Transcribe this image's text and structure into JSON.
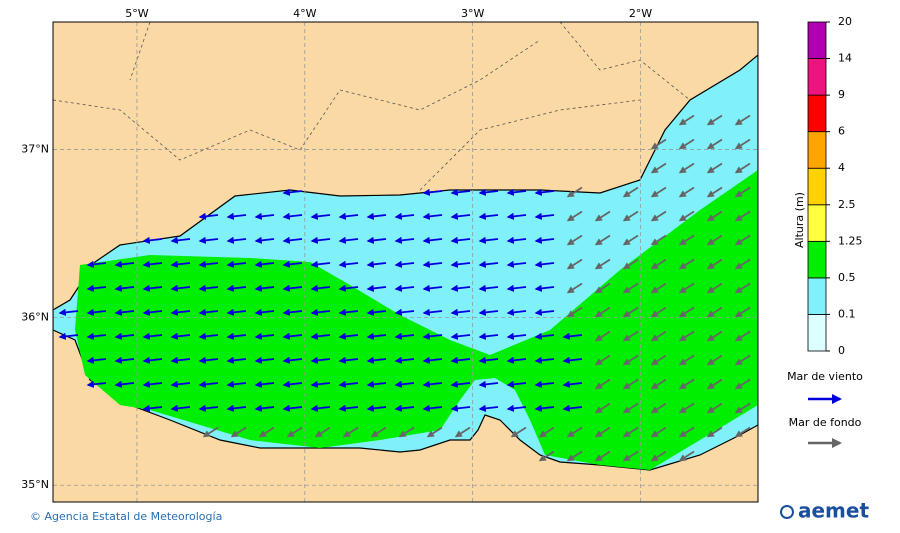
{
  "map": {
    "lon_range": [
      -5.5,
      -1.3
    ],
    "lat_range": [
      34.9,
      37.76
    ],
    "lon_ticks": [
      {
        "value": -5,
        "label": "5°W"
      },
      {
        "value": -4,
        "label": "4°W"
      },
      {
        "value": -3,
        "label": "3°W"
      },
      {
        "value": -2,
        "label": "2°W"
      }
    ],
    "lat_ticks": [
      {
        "value": 37,
        "label": "37°N"
      },
      {
        "value": 36,
        "label": "36°N"
      },
      {
        "value": 35,
        "label": "35°N"
      }
    ],
    "colorbar": {
      "title": "Altura (m)",
      "levels": [
        0,
        0.1,
        0.5,
        1.25,
        2.5,
        4,
        6,
        9,
        14,
        20
      ],
      "colors": [
        "#dcffff",
        "#80f0fa",
        "#00ee00",
        "#ffff40",
        "#ffd200",
        "#ffa500",
        "#ff0000",
        "#ee1480",
        "#b000b0"
      ]
    },
    "legend": [
      {
        "label": "Mar de viento",
        "color": "#0000dd"
      },
      {
        "label": "Mar de fondo",
        "color": "#666666"
      }
    ],
    "footer": {
      "credit": "© Agencia Estatal de Meteorología",
      "logo": "aemet"
    }
  }
}
